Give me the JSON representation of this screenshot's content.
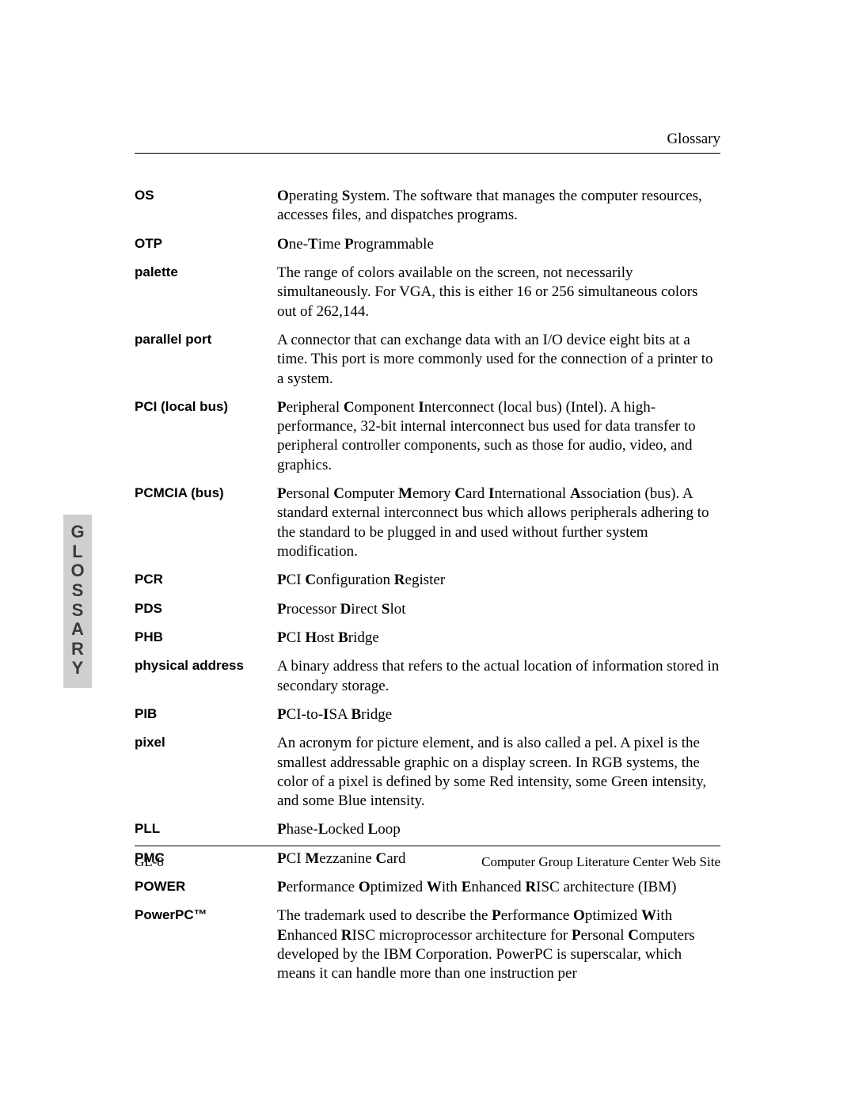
{
  "header": {
    "title": "Glossary"
  },
  "sideTab": {
    "letters": [
      "G",
      "L",
      "O",
      "S",
      "S",
      "A",
      "R",
      "Y"
    ],
    "background": "#cfcfcf",
    "text_color": "#3a3a3a"
  },
  "footer": {
    "left": "GL-8",
    "right": "Computer Group Literature Center Web Site"
  },
  "entries": [
    {
      "term": "OS",
      "def_html": "<b>O</b>perating <b>S</b>ystem. The software that manages the computer resources, accesses files, and dispatches programs."
    },
    {
      "term": "OTP",
      "def_html": "<b>O</b>ne-<b>T</b>ime <b>P</b>rogrammable"
    },
    {
      "term": "palette",
      "def_html": "The range of colors available on the screen, not necessarily simultaneously. For VGA, this is either 16 or 256 simultaneous colors out of 262,144."
    },
    {
      "term": "parallel port",
      "def_html": "A connector that can exchange data with an I/O device eight bits at a time. This port is more commonly used for the connection of a printer to a system."
    },
    {
      "term": "PCI (local bus)",
      "def_html": "<b>P</b>eripheral <b>C</b>omponent <b>I</b>nterconnect (local bus) (Intel). A high-performance, 32-bit internal interconnect bus used for data transfer to peripheral controller components, such as those for audio, video, and graphics."
    },
    {
      "term": "PCMCIA (bus)",
      "def_html": "<b>P</b>ersonal <b>C</b>omputer <b>M</b>emory <b>C</b>ard <b>I</b>nternational <b>A</b>ssociation (bus). A standard external interconnect bus which allows peripherals adhering to the standard to be plugged in and used without further system modification."
    },
    {
      "term": "PCR",
      "def_html": "<b>P</b>CI <b>C</b>onfiguration <b>R</b>egister"
    },
    {
      "term": "PDS",
      "def_html": "<b>P</b>rocessor <b>D</b>irect <b>S</b>lot"
    },
    {
      "term": "PHB",
      "def_html": "<b>P</b>CI <b>H</b>ost <b>B</b>ridge"
    },
    {
      "term": "physical address",
      "def_html": "A binary address that refers to the actual location of information stored in secondary storage."
    },
    {
      "term": "PIB",
      "def_html": "<b>P</b>CI-to-<b>I</b>SA <b>B</b>ridge"
    },
    {
      "term": "pixel",
      "def_html": "An acronym for picture element, and is also called a pel. A pixel is the smallest addressable graphic on a display screen. In RGB systems, the color of a pixel is defined by some Red intensity, some Green intensity, and some Blue intensity."
    },
    {
      "term": "PLL",
      "def_html": "<b>P</b>hase-<b>L</b>ocked <b>L</b>oop"
    },
    {
      "term": "PMC",
      "def_html": "<b>P</b>CI <b>M</b>ezzanine <b>C</b>ard"
    },
    {
      "term": "POWER",
      "def_html": "<b>P</b>erformance <b>O</b>ptimized <b>W</b>ith <b>E</b>nhanced <b>R</b>ISC architecture (IBM)"
    },
    {
      "term": "PowerPC™",
      "def_html": "The trademark used to describe the <b>P</b>erformance <b>O</b>ptimized <b>W</b>ith <b>E</b>nhanced <b>R</b>ISC microprocessor architecture for <b>P</b>ersonal <b>C</b>omputers developed by the IBM Corporation. PowerPC is superscalar, which means it can handle more than one instruction per"
    }
  ]
}
